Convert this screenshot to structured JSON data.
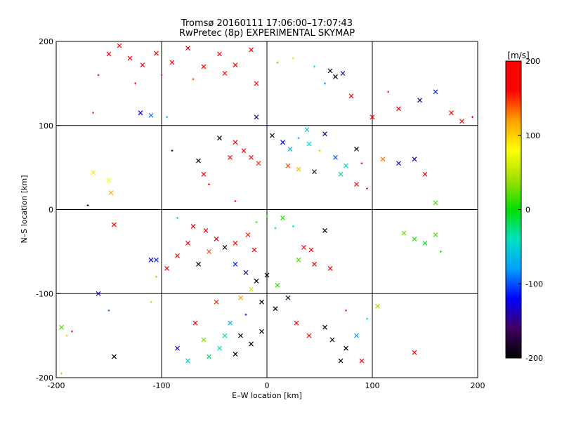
{
  "chart_data": {
    "type": "scatter",
    "title": "Tromsø 20160111 17:06:00–17:07:43",
    "subtitle": "RwPretec (8p) EXPERIMENTAL SKYMAP",
    "xlabel": "E–W location [km]",
    "ylabel": "N–S location [km]",
    "xlim": [
      -200,
      200
    ],
    "ylim": [
      -200,
      200
    ],
    "xticks": [
      -200,
      -100,
      0,
      100,
      200
    ],
    "yticks": [
      -200,
      -100,
      0,
      100,
      200
    ],
    "grid": true,
    "colorbar": {
      "label": "[m/s]",
      "min": -200,
      "max": 200,
      "ticks": [
        200,
        100,
        0,
        -100,
        -200
      ],
      "colors": [
        "#000000",
        "#400060",
        "#0000ff",
        "#00a0ff",
        "#00e0c0",
        "#00e000",
        "#a0e000",
        "#ffff00",
        "#ffa000",
        "#ff0000",
        "#ff0000"
      ]
    },
    "markers": {
      "cross": "x",
      "dot": "+"
    },
    "points": [
      {
        "x": -150,
        "y": 185,
        "v": 200,
        "m": "x"
      },
      {
        "x": -140,
        "y": 195,
        "v": 190,
        "m": "x"
      },
      {
        "x": -130,
        "y": 180,
        "v": 180,
        "m": "x"
      },
      {
        "x": -118,
        "y": 172,
        "v": 170,
        "m": "x"
      },
      {
        "x": -105,
        "y": 186,
        "v": 200,
        "m": "x"
      },
      {
        "x": -90,
        "y": 175,
        "v": 190,
        "m": "x"
      },
      {
        "x": -75,
        "y": 192,
        "v": 180,
        "m": "x"
      },
      {
        "x": -60,
        "y": 170,
        "v": 200,
        "m": "x"
      },
      {
        "x": -45,
        "y": 185,
        "v": 190,
        "m": "x"
      },
      {
        "x": -30,
        "y": 172,
        "v": 160,
        "m": "x"
      },
      {
        "x": -15,
        "y": 190,
        "v": 200,
        "m": "x"
      },
      {
        "x": -160,
        "y": 160,
        "v": 170,
        "m": "+"
      },
      {
        "x": -125,
        "y": 150,
        "v": 190,
        "m": "+"
      },
      {
        "x": -100,
        "y": 160,
        "v": 200,
        "m": "+"
      },
      {
        "x": -70,
        "y": 155,
        "v": 150,
        "m": "+"
      },
      {
        "x": -40,
        "y": 162,
        "v": 200,
        "m": "x"
      },
      {
        "x": -10,
        "y": 150,
        "v": 190,
        "m": "x"
      },
      {
        "x": -120,
        "y": 115,
        "v": -120,
        "m": "x"
      },
      {
        "x": -110,
        "y": 112,
        "v": -90,
        "m": "x"
      },
      {
        "x": -95,
        "y": 110,
        "v": -60,
        "m": "+"
      },
      {
        "x": 10,
        "y": 175,
        "v": 20,
        "m": "+"
      },
      {
        "x": 25,
        "y": 180,
        "v": 60,
        "m": "+"
      },
      {
        "x": 45,
        "y": 170,
        "v": -40,
        "m": "+"
      },
      {
        "x": 60,
        "y": 165,
        "v": -180,
        "m": "x"
      },
      {
        "x": 65,
        "y": 158,
        "v": -200,
        "m": "x"
      },
      {
        "x": 72,
        "y": 162,
        "v": -150,
        "m": "x"
      },
      {
        "x": 55,
        "y": 150,
        "v": -90,
        "m": "+"
      },
      {
        "x": 80,
        "y": 135,
        "v": 180,
        "m": "x"
      },
      {
        "x": 100,
        "y": 110,
        "v": 160,
        "m": "x"
      },
      {
        "x": 115,
        "y": 140,
        "v": 190,
        "m": "+"
      },
      {
        "x": 125,
        "y": 120,
        "v": 200,
        "m": "x"
      },
      {
        "x": 145,
        "y": 130,
        "v": -150,
        "m": "x"
      },
      {
        "x": 160,
        "y": 140,
        "v": -110,
        "m": "x"
      },
      {
        "x": 175,
        "y": 115,
        "v": 190,
        "m": "x"
      },
      {
        "x": 185,
        "y": 105,
        "v": 200,
        "m": "x"
      },
      {
        "x": 195,
        "y": 110,
        "v": 180,
        "m": "+"
      },
      {
        "x": -45,
        "y": 85,
        "v": -200,
        "m": "x"
      },
      {
        "x": -30,
        "y": 80,
        "v": 190,
        "m": "x"
      },
      {
        "x": -22,
        "y": 70,
        "v": 200,
        "m": "x"
      },
      {
        "x": -15,
        "y": 62,
        "v": 180,
        "m": "x"
      },
      {
        "x": -8,
        "y": 55,
        "v": 150,
        "m": "x"
      },
      {
        "x": -35,
        "y": 62,
        "v": 200,
        "m": "x"
      },
      {
        "x": 5,
        "y": 88,
        "v": -200,
        "m": "x"
      },
      {
        "x": 15,
        "y": 80,
        "v": -120,
        "m": "x"
      },
      {
        "x": 22,
        "y": 72,
        "v": -60,
        "m": "x"
      },
      {
        "x": 30,
        "y": 85,
        "v": -80,
        "m": "+"
      },
      {
        "x": 40,
        "y": 78,
        "v": -40,
        "m": "x"
      },
      {
        "x": 50,
        "y": 70,
        "v": 40,
        "m": "+"
      },
      {
        "x": 55,
        "y": 90,
        "v": -150,
        "m": "x"
      },
      {
        "x": 65,
        "y": 62,
        "v": -100,
        "m": "x"
      },
      {
        "x": 75,
        "y": 52,
        "v": -40,
        "m": "x"
      },
      {
        "x": 85,
        "y": 72,
        "v": -200,
        "m": "x"
      },
      {
        "x": 20,
        "y": 52,
        "v": 140,
        "m": "x"
      },
      {
        "x": 30,
        "y": 48,
        "v": 110,
        "m": "x"
      },
      {
        "x": 45,
        "y": 45,
        "v": -170,
        "m": "x"
      },
      {
        "x": 70,
        "y": 42,
        "v": -30,
        "m": "x"
      },
      {
        "x": 90,
        "y": 55,
        "v": 160,
        "m": "+"
      },
      {
        "x": 110,
        "y": 60,
        "v": 130,
        "m": "x"
      },
      {
        "x": 125,
        "y": 55,
        "v": -120,
        "m": "x"
      },
      {
        "x": 140,
        "y": 60,
        "v": -140,
        "m": "x"
      },
      {
        "x": 150,
        "y": 42,
        "v": 170,
        "m": "x"
      },
      {
        "x": 160,
        "y": 8,
        "v": 20,
        "m": "x"
      },
      {
        "x": -90,
        "y": 70,
        "v": -200,
        "m": "+"
      },
      {
        "x": -65,
        "y": 58,
        "v": -190,
        "m": "x"
      },
      {
        "x": -60,
        "y": 42,
        "v": 180,
        "m": "x"
      },
      {
        "x": -55,
        "y": 30,
        "v": 200,
        "m": "+"
      },
      {
        "x": -165,
        "y": 44,
        "v": 90,
        "m": "x"
      },
      {
        "x": -150,
        "y": 35,
        "v": 80,
        "m": "x"
      },
      {
        "x": -148,
        "y": 20,
        "v": 110,
        "m": "x"
      },
      {
        "x": -170,
        "y": 5,
        "v": -200,
        "m": "+"
      },
      {
        "x": -145,
        "y": -18,
        "v": 180,
        "m": "x"
      },
      {
        "x": -70,
        "y": -20,
        "v": 200,
        "m": "x"
      },
      {
        "x": -58,
        "y": -25,
        "v": 190,
        "m": "x"
      },
      {
        "x": -48,
        "y": -35,
        "v": 170,
        "m": "x"
      },
      {
        "x": -40,
        "y": -45,
        "v": -200,
        "m": "x"
      },
      {
        "x": -55,
        "y": -50,
        "v": 140,
        "m": "x"
      },
      {
        "x": -75,
        "y": -40,
        "v": 190,
        "m": "x"
      },
      {
        "x": -30,
        "y": -40,
        "v": 200,
        "m": "x"
      },
      {
        "x": -18,
        "y": -30,
        "v": 150,
        "m": "x"
      },
      {
        "x": -12,
        "y": -48,
        "v": 180,
        "m": "x"
      },
      {
        "x": -85,
        "y": -55,
        "v": 200,
        "m": "x"
      },
      {
        "x": -95,
        "y": -70,
        "v": 190,
        "m": "x"
      },
      {
        "x": -65,
        "y": -65,
        "v": -200,
        "m": "x"
      },
      {
        "x": -110,
        "y": -60,
        "v": -130,
        "m": "x"
      },
      {
        "x": -105,
        "y": -80,
        "v": 30,
        "m": "+"
      },
      {
        "x": -10,
        "y": -15,
        "v": 20,
        "m": "+"
      },
      {
        "x": 0,
        "y": -8,
        "v": 0,
        "m": "+"
      },
      {
        "x": 8,
        "y": -22,
        "v": -20,
        "m": "+"
      },
      {
        "x": 15,
        "y": -10,
        "v": 10,
        "m": "x"
      },
      {
        "x": 25,
        "y": -20,
        "v": -40,
        "m": "+"
      },
      {
        "x": 35,
        "y": -45,
        "v": 190,
        "m": "x"
      },
      {
        "x": 42,
        "y": -48,
        "v": 170,
        "m": "x"
      },
      {
        "x": 55,
        "y": -25,
        "v": -200,
        "m": "x"
      },
      {
        "x": 30,
        "y": -60,
        "v": 20,
        "m": "x"
      },
      {
        "x": 45,
        "y": -65,
        "v": 200,
        "m": "x"
      },
      {
        "x": 60,
        "y": -70,
        "v": 160,
        "m": "x"
      },
      {
        "x": -30,
        "y": -65,
        "v": -110,
        "m": "x"
      },
      {
        "x": -20,
        "y": -75,
        "v": -150,
        "m": "x"
      },
      {
        "x": -10,
        "y": -85,
        "v": -200,
        "m": "x"
      },
      {
        "x": 0,
        "y": -78,
        "v": -190,
        "m": "x"
      },
      {
        "x": 10,
        "y": -90,
        "v": 10,
        "m": "x"
      },
      {
        "x": -15,
        "y": -95,
        "v": 60,
        "m": "x"
      },
      {
        "x": -25,
        "y": -105,
        "v": 120,
        "m": "x"
      },
      {
        "x": -5,
        "y": -110,
        "v": -200,
        "m": "x"
      },
      {
        "x": 8,
        "y": -118,
        "v": -200,
        "m": "x"
      },
      {
        "x": -20,
        "y": -125,
        "v": -120,
        "m": "+"
      },
      {
        "x": -35,
        "y": -135,
        "v": -60,
        "m": "x"
      },
      {
        "x": -40,
        "y": -150,
        "v": -30,
        "m": "x"
      },
      {
        "x": -25,
        "y": -150,
        "v": -200,
        "m": "x"
      },
      {
        "x": -15,
        "y": -160,
        "v": -200,
        "m": "x"
      },
      {
        "x": -45,
        "y": -165,
        "v": -40,
        "m": "x"
      },
      {
        "x": -55,
        "y": -175,
        "v": -20,
        "m": "x"
      },
      {
        "x": -30,
        "y": -172,
        "v": -200,
        "m": "x"
      },
      {
        "x": -5,
        "y": -145,
        "v": -200,
        "m": "x"
      },
      {
        "x": -60,
        "y": -155,
        "v": 30,
        "m": "x"
      },
      {
        "x": -85,
        "y": -165,
        "v": -120,
        "m": "x"
      },
      {
        "x": -75,
        "y": -180,
        "v": -50,
        "m": "x"
      },
      {
        "x": -68,
        "y": -135,
        "v": 200,
        "m": "x"
      },
      {
        "x": -48,
        "y": -110,
        "v": 150,
        "m": "x"
      },
      {
        "x": 20,
        "y": -105,
        "v": -180,
        "m": "x"
      },
      {
        "x": 28,
        "y": -135,
        "v": 200,
        "m": "x"
      },
      {
        "x": 40,
        "y": -150,
        "v": 190,
        "m": "x"
      },
      {
        "x": 55,
        "y": -140,
        "v": -200,
        "m": "x"
      },
      {
        "x": 62,
        "y": -155,
        "v": -200,
        "m": "x"
      },
      {
        "x": 75,
        "y": -165,
        "v": -200,
        "m": "x"
      },
      {
        "x": 70,
        "y": -180,
        "v": -200,
        "m": "x"
      },
      {
        "x": 85,
        "y": -150,
        "v": -80,
        "m": "x"
      },
      {
        "x": 95,
        "y": -130,
        "v": -40,
        "m": "+"
      },
      {
        "x": 90,
        "y": -180,
        "v": 190,
        "m": "x"
      },
      {
        "x": 75,
        "y": -120,
        "v": 170,
        "m": "+"
      },
      {
        "x": 105,
        "y": -115,
        "v": 40,
        "m": "x"
      },
      {
        "x": 140,
        "y": -170,
        "v": 190,
        "m": "x"
      },
      {
        "x": 130,
        "y": -28,
        "v": 30,
        "m": "x"
      },
      {
        "x": 140,
        "y": -35,
        "v": 10,
        "m": "x"
      },
      {
        "x": 150,
        "y": -40,
        "v": -10,
        "m": "x"
      },
      {
        "x": 160,
        "y": -30,
        "v": 20,
        "m": "x"
      },
      {
        "x": 165,
        "y": -50,
        "v": 0,
        "m": "+"
      },
      {
        "x": -105,
        "y": -60,
        "v": -110,
        "m": "x"
      },
      {
        "x": -160,
        "y": -100,
        "v": -130,
        "m": "x"
      },
      {
        "x": -150,
        "y": -120,
        "v": -100,
        "m": "+"
      },
      {
        "x": -195,
        "y": -140,
        "v": 20,
        "m": "x"
      },
      {
        "x": -190,
        "y": -150,
        "v": 110,
        "m": "+"
      },
      {
        "x": -185,
        "y": -145,
        "v": 170,
        "m": "+"
      },
      {
        "x": -145,
        "y": -175,
        "v": -200,
        "m": "x"
      },
      {
        "x": -195,
        "y": -195,
        "v": 40,
        "m": "+"
      },
      {
        "x": -110,
        "y": -110,
        "v": 40,
        "m": "+"
      },
      {
        "x": -165,
        "y": 115,
        "v": 150,
        "m": "+"
      },
      {
        "x": -10,
        "y": 110,
        "v": -150,
        "m": "x"
      },
      {
        "x": 0,
        "y": 100,
        "v": -120,
        "m": "+"
      },
      {
        "x": 38,
        "y": 95,
        "v": -60,
        "m": "x"
      },
      {
        "x": 95,
        "y": 25,
        "v": 180,
        "m": "+"
      },
      {
        "x": 85,
        "y": 30,
        "v": 190,
        "m": "x"
      },
      {
        "x": -85,
        "y": -10,
        "v": -40,
        "m": "+"
      },
      {
        "x": -30,
        "y": 10,
        "v": 170,
        "m": "+"
      }
    ]
  }
}
